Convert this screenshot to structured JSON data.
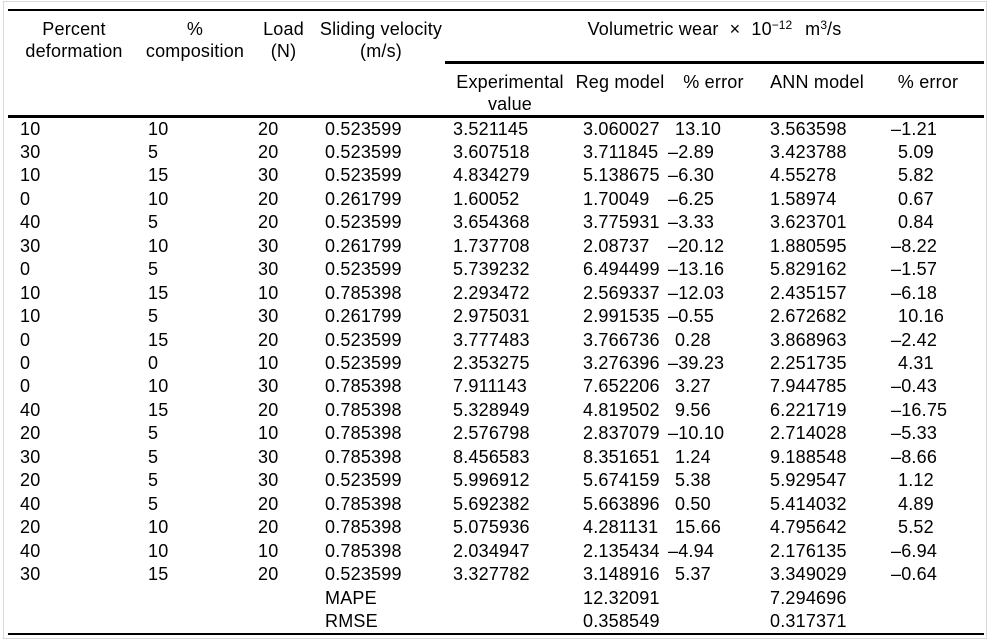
{
  "table": {
    "header": {
      "percent_deformation": "Percent deformation",
      "composition": "% composition",
      "load": "Load (N)",
      "sliding_velocity": "Sliding velocity (m/s)",
      "volumetric": {
        "label": "Volumetric wear",
        "times": "×",
        "base": "10",
        "exponent": "−12",
        "unit_base": "m",
        "unit_exponent": "3",
        "unit_suffix": "/s"
      },
      "sub": [
        "Experimental value",
        "Reg model",
        "% error",
        "ANN model",
        "% error"
      ]
    },
    "rows": [
      [
        "10",
        "10",
        "20",
        "0.523599",
        "3.521145",
        "3.060027",
        "13.10",
        "3.563598",
        "–1.21"
      ],
      [
        "30",
        "5",
        "20",
        "0.523599",
        "3.607518",
        "3.711845",
        "–2.89",
        "3.423788",
        "5.09"
      ],
      [
        "10",
        "15",
        "30",
        "0.523599",
        "4.834279",
        "5.138675",
        "–6.30",
        "4.55278",
        "5.82"
      ],
      [
        "0",
        "10",
        "20",
        "0.261799",
        "1.60052",
        "1.70049",
        "–6.25",
        "1.58974",
        "0.67"
      ],
      [
        "40",
        "5",
        "20",
        "0.523599",
        "3.654368",
        "3.775931",
        "–3.33",
        "3.623701",
        "0.84"
      ],
      [
        "30",
        "10",
        "30",
        "0.261799",
        "1.737708",
        "2.08737",
        "–20.12",
        "1.880595",
        "–8.22"
      ],
      [
        "0",
        "5",
        "30",
        "0.523599",
        "5.739232",
        "6.494499",
        "–13.16",
        "5.829162",
        "–1.57"
      ],
      [
        "10",
        "15",
        "10",
        "0.785398",
        "2.293472",
        "2.569337",
        "–12.03",
        "2.435157",
        "–6.18"
      ],
      [
        "10",
        "5",
        "30",
        "0.261799",
        "2.975031",
        "2.991535",
        "–0.55",
        "2.672682",
        "10.16"
      ],
      [
        "0",
        "15",
        "20",
        "0.523599",
        "3.777483",
        "3.766736",
        "0.28",
        "3.868963",
        "–2.42"
      ],
      [
        "0",
        "0",
        "10",
        "0.523599",
        "2.353275",
        "3.276396",
        "–39.23",
        "2.251735",
        "4.31"
      ],
      [
        "0",
        "10",
        "30",
        "0.785398",
        "7.911143",
        "7.652206",
        "3.27",
        "7.944785",
        "–0.43"
      ],
      [
        "40",
        "15",
        "20",
        "0.785398",
        "5.328949",
        "4.819502",
        "9.56",
        "6.221719",
        "–16.75"
      ],
      [
        "20",
        "5",
        "10",
        "0.785398",
        "2.576798",
        "2.837079",
        "–10.10",
        "2.714028",
        "–5.33"
      ],
      [
        "30",
        "5",
        "30",
        "0.785398",
        "8.456583",
        "8.351651",
        "1.24",
        "9.188548",
        "–8.66"
      ],
      [
        "20",
        "5",
        "30",
        "0.523599",
        "5.996912",
        "5.674159",
        "5.38",
        "5.929547",
        "1.12"
      ],
      [
        "40",
        "5",
        "20",
        "0.785398",
        "5.692382",
        "5.663896",
        "0.50",
        "5.414032",
        "4.89"
      ],
      [
        "20",
        "10",
        "20",
        "0.785398",
        "5.075936",
        "4.281131",
        "15.66",
        "4.795642",
        "5.52"
      ],
      [
        "40",
        "10",
        "10",
        "0.785398",
        "2.034947",
        "2.135434",
        "–4.94",
        "2.176135",
        "–6.94"
      ],
      [
        "30",
        "15",
        "20",
        "0.523599",
        "3.327782",
        "3.148916",
        "5.37",
        "3.349029",
        "–0.64"
      ]
    ],
    "summary": [
      {
        "label": "MAPE",
        "reg": "12.32091",
        "ann": "7.294696"
      },
      {
        "label": "RMSE",
        "reg": "0.358549",
        "ann": "0.317371"
      }
    ]
  }
}
